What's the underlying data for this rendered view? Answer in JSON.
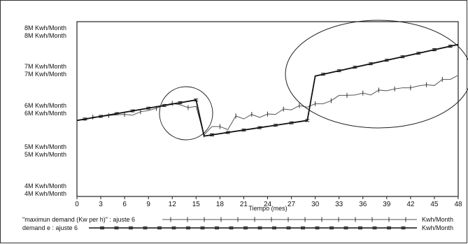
{
  "chart_data": {
    "type": "line",
    "xlabel": "Tiempo (mes)",
    "x_ticks": [
      0,
      3,
      6,
      9,
      12,
      15,
      18,
      21,
      24,
      27,
      30,
      33,
      36,
      39,
      42,
      45,
      48
    ],
    "xlim": [
      0,
      48
    ],
    "ylim": [
      3.7,
      8.3
    ],
    "y_axis": {
      "top_labels": [
        "8M  Kwh/Month",
        "8M  Kwh/Month"
      ],
      "upper_labels": [
        "7M  Kwh/Month",
        "7M  Kwh/Month"
      ],
      "middle_labels": [
        "6M  Kwh/Month",
        "6M  Kwh/Month"
      ],
      "lower_labels": [
        "5M  Kwh/Month",
        "5M  Kwh/Month"
      ],
      "bottom_labels": [
        "4M  Kwh/Month",
        "4M  Kwh/Month"
      ]
    },
    "series": [
      {
        "name": "\"maximun demand (Kw per h)\" : ajuste 6",
        "marker": "1",
        "unit": "Kwh/Month",
        "color": "#555555",
        "x": [
          0,
          1,
          2,
          3,
          4,
          5,
          6,
          7,
          8,
          9,
          10,
          11,
          12,
          13,
          14,
          15,
          16,
          17,
          18,
          19,
          20,
          21,
          22,
          23,
          24,
          25,
          26,
          27,
          28,
          29,
          30,
          31,
          32,
          33,
          34,
          35,
          36,
          37,
          38,
          39,
          40,
          41,
          42,
          43,
          44,
          45,
          46,
          47,
          48
        ],
        "values": [
          5.71,
          5.72,
          5.79,
          5.8,
          5.83,
          5.85,
          5.86,
          5.84,
          5.93,
          5.96,
          6.02,
          6.1,
          6.15,
          6.11,
          6.04,
          6.07,
          5.32,
          5.54,
          5.54,
          5.46,
          5.82,
          5.74,
          5.86,
          5.78,
          5.87,
          5.86,
          6.0,
          5.98,
          6.09,
          6.05,
          6.14,
          6.14,
          6.22,
          6.36,
          6.36,
          6.37,
          6.42,
          6.37,
          6.5,
          6.48,
          6.53,
          6.56,
          6.56,
          6.61,
          6.64,
          6.62,
          6.78,
          6.78,
          6.89
        ]
      },
      {
        "name": "demand e : ajuste 6",
        "marker": "2",
        "unit": "Kwh/Month",
        "color": "#111111",
        "x": [
          0,
          15,
          16,
          29,
          30,
          48
        ],
        "values": [
          5.7,
          6.24,
          5.29,
          5.7,
          6.87,
          7.7
        ],
        "marker_x": [
          1,
          3,
          5,
          7,
          9,
          11,
          13,
          15,
          17,
          19,
          21,
          23,
          25,
          27,
          29,
          31,
          33,
          35,
          37,
          39,
          41,
          43,
          45,
          47
        ]
      }
    ],
    "annotations": [
      "circle around months 10-16",
      "ellipse around months 28-48"
    ]
  }
}
